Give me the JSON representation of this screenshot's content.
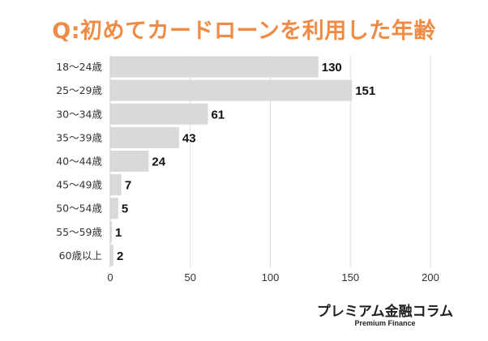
{
  "chart_data": {
    "type": "bar",
    "orientation": "horizontal",
    "title": "Q:初めてカードローンを利用した年齢",
    "categories": [
      "18〜24歳",
      "25〜29歳",
      "30〜34歳",
      "35〜39歳",
      "40〜44歳",
      "45〜49歳",
      "50〜54歳",
      "55〜59歳",
      "60歳以上"
    ],
    "values": [
      130,
      151,
      61,
      43,
      24,
      7,
      5,
      1,
      2
    ],
    "xticks": [
      "0",
      "50",
      "100",
      "150",
      "200"
    ],
    "xlim": [
      0,
      200
    ],
    "grid": true,
    "bar_color": "#d9d9d9",
    "title_color": "#ef8b45"
  },
  "branding": {
    "name": "プレミアム金融コラム",
    "sub": "Premium Finance"
  }
}
